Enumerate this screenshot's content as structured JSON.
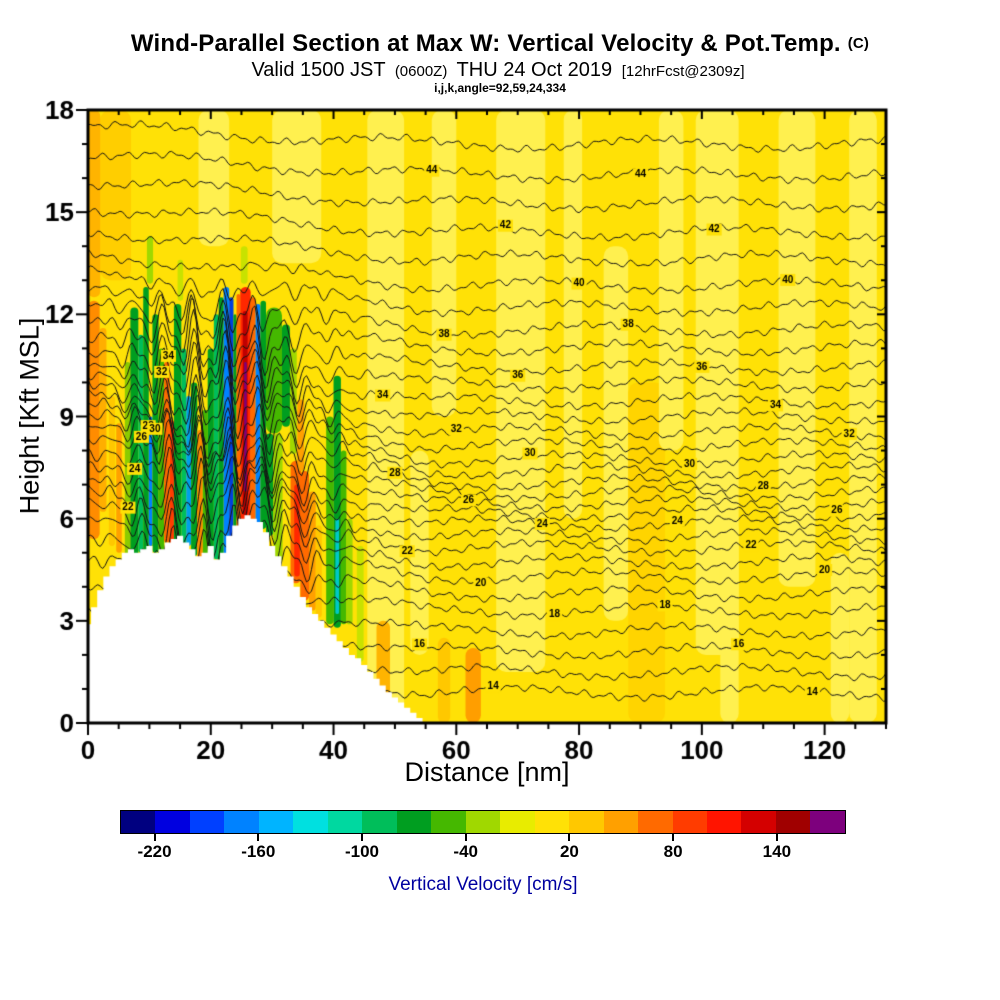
{
  "chart_data": {
    "type": "heatmap",
    "title": "Wind-Parallel Section at Max W: Vertical Velocity & Pot.Temp.",
    "title_unit": "(C)",
    "subtitle": {
      "valid_prefix": "Valid 1500 JST",
      "zulu_time": "(0600Z)",
      "date": "THU 24 Oct 2019",
      "forecast_tag": "[12hrFcst@2309z]"
    },
    "grid_info": "i,j,k,angle=92,59,24,334",
    "xlabel": "Distance [nm]",
    "ylabel": "Height [Kft MSL]",
    "xlim": [
      0,
      130
    ],
    "ylim": [
      0,
      18
    ],
    "xticks": [
      0,
      20,
      40,
      60,
      80,
      100,
      120
    ],
    "xminor_step": 5,
    "yticks": [
      0,
      3,
      6,
      9,
      12,
      15,
      18
    ],
    "yminor_step": 1,
    "plot_bg_color": "#FFE106",
    "contour_color": "#141414",
    "colorbar": {
      "label": "Vertical Velocity [cm/s]",
      "value_min": -240,
      "value_max": 180,
      "segment_step": 20,
      "tick_labels": [
        "-220",
        "-160",
        "-100",
        "-40",
        "20",
        "80",
        "140"
      ],
      "tick_boundary_indices": [
        1,
        4,
        7,
        10,
        13,
        16,
        19
      ],
      "segment_colors": [
        "#000080",
        "#0000E0",
        "#0040FF",
        "#0082FF",
        "#00B4FF",
        "#00E0E0",
        "#00D8A0",
        "#00BE5A",
        "#009E20",
        "#45B800",
        "#A0D800",
        "#E8EC00",
        "#FFE106",
        "#FFC800",
        "#FFA000",
        "#FF6A00",
        "#FF3C00",
        "#FF1400",
        "#D40000",
        "#A00000",
        "#7D007D"
      ]
    },
    "contours": {
      "parameter": "Potential Temperature (C)",
      "level_min": 14,
      "level_max": 45,
      "level_step": 1,
      "label_every": 2,
      "right_edge_heights": [
        [
          14,
          0.9
        ],
        [
          16,
          2.1
        ],
        [
          18,
          3.3
        ],
        [
          20,
          4.3
        ],
        [
          22,
          5.15
        ],
        [
          24,
          5.85
        ],
        [
          26,
          6.45
        ],
        [
          28,
          7.05
        ],
        [
          30,
          7.75
        ],
        [
          32,
          8.55
        ],
        [
          34,
          9.45
        ],
        [
          36,
          10.45
        ],
        [
          38,
          11.55
        ],
        [
          40,
          12.85
        ],
        [
          42,
          14.4
        ],
        [
          44,
          16.1
        ],
        [
          45,
          17.0
        ]
      ],
      "left_tilt": [
        [
          14,
          1.2
        ],
        [
          20,
          1.6
        ],
        [
          26,
          2.0
        ],
        [
          32,
          1.8
        ],
        [
          38,
          1.1
        ],
        [
          45,
          0.5
        ]
      ],
      "wave": {
        "amp": 1.0,
        "envelopes": [
          [
            19,
            12,
            1.0
          ],
          [
            33,
            9,
            0.35
          ]
        ],
        "wl1": 4.8,
        "wl2": 2.6,
        "phase_k1": 0.12,
        "phase_k2": 0.3,
        "downslope": {
          "x": 36,
          "sigma": 5.5,
          "amp": -0.45
        }
      }
    },
    "terrain_profile_kft": [
      [
        0,
        2.9
      ],
      [
        1,
        3.4
      ],
      [
        2,
        3.9
      ],
      [
        3,
        4.3
      ],
      [
        4,
        4.6
      ],
      [
        5,
        4.8
      ],
      [
        6,
        5.0
      ],
      [
        7,
        5.1
      ],
      [
        8,
        5.0
      ],
      [
        9,
        5.1
      ],
      [
        10,
        5.2
      ],
      [
        11,
        5.0
      ],
      [
        12,
        5.1
      ],
      [
        13,
        5.3
      ],
      [
        14,
        5.4
      ],
      [
        15,
        5.5
      ],
      [
        16,
        5.3
      ],
      [
        17,
        5.1
      ],
      [
        18,
        4.9
      ],
      [
        19,
        5.0
      ],
      [
        20,
        5.2
      ],
      [
        21,
        4.8
      ],
      [
        22,
        5.0
      ],
      [
        23,
        5.5
      ],
      [
        24,
        5.8
      ],
      [
        25,
        6.0
      ],
      [
        26,
        6.1
      ],
      [
        27,
        6.0
      ],
      [
        28,
        5.9
      ],
      [
        29,
        5.6
      ],
      [
        30,
        5.2
      ],
      [
        31,
        4.9
      ],
      [
        32,
        4.6
      ],
      [
        33,
        4.3
      ],
      [
        34,
        4.0
      ],
      [
        35,
        3.7
      ],
      [
        36,
        3.4
      ],
      [
        37,
        3.2
      ],
      [
        38,
        3.0
      ],
      [
        39,
        2.8
      ],
      [
        40,
        2.6
      ],
      [
        41,
        2.4
      ],
      [
        42,
        2.2
      ],
      [
        43,
        2.0
      ],
      [
        44,
        1.9
      ],
      [
        45,
        1.7
      ],
      [
        46,
        1.5
      ],
      [
        47,
        1.3
      ],
      [
        48,
        1.1
      ],
      [
        49,
        0.9
      ],
      [
        50,
        0.75
      ],
      [
        51,
        0.6
      ],
      [
        52,
        0.45
      ],
      [
        53,
        0.3
      ],
      [
        54,
        0.15
      ],
      [
        55,
        0.0
      ]
    ],
    "shade_patches": [
      [
        45.5,
        6.0,
        0,
        18,
        "#FFF04F"
      ],
      [
        47.0,
        2.2,
        0,
        3.0,
        "#FFB400"
      ],
      [
        52.5,
        3.0,
        2.0,
        8.0,
        "#FFF04F"
      ],
      [
        56.0,
        4.0,
        9.0,
        18,
        "#FFF04F"
      ],
      [
        57.0,
        2.0,
        0,
        2.5,
        "#FFC800"
      ],
      [
        61.5,
        2.5,
        0,
        2.2,
        "#FF9E00"
      ],
      [
        66.5,
        8.0,
        1.5,
        18,
        "#FFF04F"
      ],
      [
        77.5,
        3.0,
        6.0,
        18,
        "#FFF04F"
      ],
      [
        84.0,
        4.0,
        3.0,
        14.0,
        "#FFF04F"
      ],
      [
        99.0,
        7.0,
        2.0,
        18,
        "#FFF04F"
      ],
      [
        103.0,
        3.0,
        0,
        6.0,
        "#FFF04F"
      ],
      [
        112.5,
        6.0,
        4.0,
        18,
        "#FFF04F"
      ],
      [
        124.0,
        4.5,
        0,
        18,
        "#FFF04F"
      ],
      [
        121.0,
        3.0,
        0,
        5.0,
        "#FFF04F"
      ],
      [
        30.0,
        8.0,
        13.5,
        18,
        "#FFF04F"
      ],
      [
        18.0,
        5.0,
        14.0,
        18,
        "#FFF04F"
      ],
      [
        2.0,
        5.0,
        13.0,
        18,
        "#FFCE00"
      ],
      [
        0.0,
        2.0,
        12.5,
        18,
        "#FFB400"
      ],
      [
        88.0,
        6.0,
        0,
        10,
        "#FFD400"
      ],
      [
        93.0,
        4.0,
        8,
        18,
        "#FFF04F"
      ]
    ],
    "velocity_bands": [
      [
        0.0,
        1.9,
        5.4,
        12.4,
        "#FF8C00"
      ],
      [
        1.9,
        1.1,
        6.2,
        11.6,
        "#FFAE00"
      ],
      [
        3.4,
        1.0,
        5.2,
        9.6,
        "#FFC800"
      ],
      [
        4.6,
        0.9,
        5.0,
        8.8,
        "#FFA000"
      ],
      [
        6.0,
        0.9,
        4.9,
        10.6,
        "#8CCB00"
      ],
      [
        6.9,
        1.3,
        4.8,
        12.2,
        "#009E20"
      ],
      [
        8.2,
        0.8,
        5.0,
        11.4,
        "#00BE5A"
      ],
      [
        9.0,
        0.9,
        5.0,
        12.8,
        "#009E20"
      ],
      [
        9.9,
        0.6,
        5.2,
        9.0,
        "#0082FF"
      ],
      [
        10.5,
        1.0,
        5.0,
        12.0,
        "#009E20"
      ],
      [
        11.5,
        0.9,
        5.0,
        11.0,
        "#45B800"
      ],
      [
        12.4,
        0.9,
        5.3,
        10.6,
        "#FF6A00"
      ],
      [
        13.3,
        0.7,
        5.1,
        8.9,
        "#FF3C00"
      ],
      [
        14.0,
        1.2,
        5.2,
        12.3,
        "#009E20"
      ],
      [
        15.2,
        0.8,
        5.2,
        11.0,
        "#00BE5A"
      ],
      [
        16.0,
        0.8,
        5.2,
        9.6,
        "#00A0E8"
      ],
      [
        16.8,
        1.0,
        4.9,
        10.0,
        "#009E20"
      ],
      [
        17.8,
        0.9,
        4.8,
        8.6,
        "#FF8C00"
      ],
      [
        18.7,
        0.8,
        4.8,
        9.2,
        "#45B800"
      ],
      [
        19.5,
        1.0,
        4.7,
        11.0,
        "#009E20"
      ],
      [
        20.5,
        0.8,
        4.8,
        12.0,
        "#00BE5A"
      ],
      [
        21.3,
        0.8,
        4.7,
        12.5,
        "#009E20"
      ],
      [
        22.1,
        0.9,
        4.9,
        12.8,
        "#0082FF"
      ],
      [
        23.0,
        0.7,
        5.2,
        12.5,
        "#0040E0"
      ],
      [
        23.7,
        0.5,
        5.5,
        12.0,
        "#009E20"
      ],
      [
        24.2,
        0.6,
        5.7,
        12.6,
        "#FF6A00"
      ],
      [
        24.8,
        1.7,
        5.8,
        12.8,
        "#FF2800"
      ],
      [
        25.2,
        0.8,
        6.1,
        12.1,
        "#C00000"
      ],
      [
        25.45,
        0.4,
        6.8,
        10.6,
        "#7D007D"
      ],
      [
        26.5,
        0.8,
        5.9,
        12.5,
        "#FF6A00"
      ],
      [
        27.3,
        0.8,
        5.8,
        12.3,
        "#0082FF"
      ],
      [
        28.1,
        0.9,
        5.7,
        12.4,
        "#009E20"
      ],
      [
        29.0,
        2.6,
        8.5,
        12.2,
        "#45B800"
      ],
      [
        29.0,
        1.2,
        5.5,
        8.5,
        "#009E20"
      ],
      [
        30.2,
        1.5,
        4.7,
        8.5,
        "#A0D800"
      ],
      [
        31.6,
        1.3,
        8.7,
        11.7,
        "#009E20"
      ],
      [
        32.9,
        1.1,
        7.9,
        11.0,
        "#A0D800"
      ],
      [
        33.0,
        1.7,
        4.1,
        7.7,
        "#FF6A00"
      ],
      [
        33.6,
        0.9,
        4.3,
        7.0,
        "#FF2800"
      ],
      [
        34.6,
        1.4,
        3.6,
        7.4,
        "#FF6A00"
      ],
      [
        36.0,
        1.1,
        3.3,
        6.8,
        "#FFA000"
      ],
      [
        34.1,
        1.1,
        7.4,
        9.5,
        "#FFA000"
      ],
      [
        37.1,
        1.0,
        3.1,
        5.8,
        "#FFC800"
      ],
      [
        38.8,
        1.2,
        2.9,
        9.0,
        "#45B800"
      ],
      [
        40.0,
        1.2,
        2.8,
        10.2,
        "#009E20"
      ],
      [
        40.3,
        0.6,
        3.2,
        6.0,
        "#00C8C8"
      ],
      [
        41.2,
        0.9,
        2.9,
        8.0,
        "#45B800"
      ],
      [
        42.1,
        1.0,
        2.9,
        6.0,
        "#A0D800"
      ],
      [
        43.8,
        1.1,
        1.8,
        5.2,
        "#C8E200"
      ],
      [
        9.6,
        1.0,
        12.9,
        14.3,
        "#A0D800"
      ],
      [
        24.9,
        1.1,
        12.9,
        14.0,
        "#C8E200"
      ],
      [
        14.6,
        0.9,
        12.4,
        13.6,
        "#C8E200"
      ]
    ]
  }
}
